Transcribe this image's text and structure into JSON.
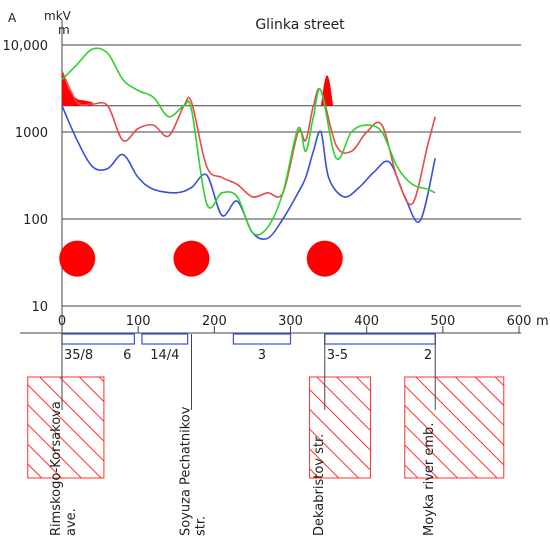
{
  "chart_data": {
    "type": "line",
    "title": "Glinka street",
    "y_axis": {
      "unit_top": "mkV",
      "unit_top_left": "A",
      "unit_sub": "m",
      "scale": "log",
      "range": [
        10,
        10000
      ],
      "tick_labels": [
        "10,000",
        "1000",
        "100",
        "10"
      ],
      "tick_values": [
        10000,
        1000,
        100,
        10
      ]
    },
    "x_axis": {
      "unit": "m",
      "range": [
        0,
        600
      ],
      "ticks": [
        0,
        100,
        200,
        300,
        400,
        500,
        600
      ],
      "tick_labels": [
        "0",
        "100",
        "200",
        "300",
        "400",
        "500",
        "600"
      ]
    },
    "threshold_value": 2000,
    "series": [
      {
        "color": "#3a4fd8",
        "x": [
          0,
          20,
          40,
          60,
          80,
          100,
          120,
          150,
          170,
          190,
          210,
          230,
          250,
          270,
          290,
          310,
          320,
          330,
          340,
          350,
          370,
          390,
          410,
          430,
          450,
          470,
          490
        ],
        "y": [
          2000,
          800,
          400,
          380,
          550,
          300,
          220,
          200,
          230,
          320,
          110,
          160,
          70,
          60,
          100,
          200,
          300,
          600,
          1000,
          300,
          180,
          230,
          350,
          450,
          180,
          95,
          500
        ]
      },
      {
        "color": "#e84a4a",
        "x": [
          0,
          20,
          40,
          60,
          80,
          100,
          120,
          140,
          160,
          170,
          190,
          210,
          230,
          250,
          270,
          290,
          310,
          320,
          330,
          340,
          360,
          380,
          400,
          420,
          440,
          460,
          480,
          490
        ],
        "y": [
          5000,
          2200,
          2100,
          2000,
          800,
          1100,
          1200,
          900,
          2000,
          2200,
          400,
          300,
          250,
          180,
          200,
          200,
          1000,
          800,
          2000,
          3000,
          700,
          600,
          1000,
          1200,
          300,
          150,
          700,
          1500
        ]
      },
      {
        "color": "#2ed12e",
        "x": [
          0,
          20,
          40,
          60,
          80,
          100,
          120,
          140,
          160,
          170,
          190,
          210,
          230,
          250,
          270,
          290,
          310,
          320,
          330,
          340,
          360,
          380,
          400,
          420,
          440,
          460,
          480,
          490
        ],
        "y": [
          4000,
          6000,
          9000,
          8000,
          4000,
          3000,
          2500,
          1500,
          2000,
          1800,
          150,
          200,
          180,
          70,
          80,
          200,
          1100,
          600,
          1500,
          3000,
          500,
          1000,
          1200,
          1000,
          400,
          250,
          220,
          200
        ]
      }
    ],
    "filled_peaks": [
      {
        "color": "#ff0000",
        "x": [
          0,
          10,
          20,
          30,
          40
        ],
        "y": [
          5000,
          3000,
          2400,
          2300,
          2200
        ]
      },
      {
        "color": "#ff0000",
        "x": [
          340,
          344,
          348,
          352,
          356
        ],
        "y": [
          2000,
          3500,
          4500,
          3500,
          2000
        ]
      }
    ],
    "markers": [
      {
        "x": 20,
        "y": 35,
        "color": "#ff0000"
      },
      {
        "x": 170,
        "y": 35,
        "color": "#ff0000"
      },
      {
        "x": 345,
        "y": 35,
        "color": "#ff0000"
      }
    ],
    "segments": [
      {
        "start": 0,
        "end": 95,
        "labels": [
          "35/8",
          "6"
        ]
      },
      {
        "start": 105,
        "end": 165,
        "labels": [
          "14/4"
        ]
      },
      {
        "start": 225,
        "end": 300,
        "labels": [
          "3"
        ]
      },
      {
        "start": 345,
        "end": 490,
        "labels": [
          "3-5",
          "2"
        ]
      }
    ],
    "streets": [
      {
        "x": 0,
        "label": "Rimskogo-Korsakova",
        "label2": "ave."
      },
      {
        "x": 170,
        "label": "Soyuza Pechatnikov",
        "label2": "str."
      },
      {
        "x": 345,
        "label": "Dekabristov str.",
        "label2": ""
      },
      {
        "x": 490,
        "label": "Moyka river emb.",
        "label2": ""
      }
    ],
    "hatched_blocks": [
      {
        "x0": -45,
        "x1": 55
      },
      {
        "x0": 325,
        "x1": 405
      },
      {
        "x0": 450,
        "x1": 580
      }
    ]
  }
}
